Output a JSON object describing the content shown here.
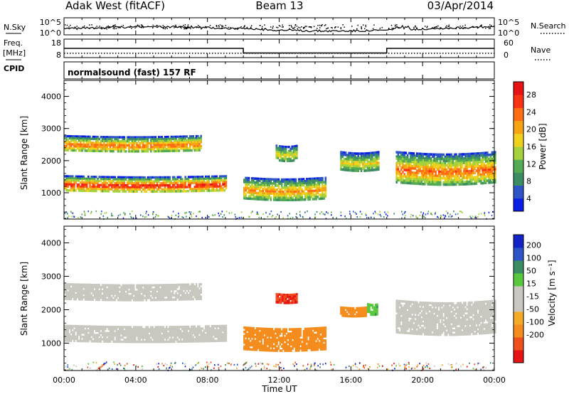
{
  "header": {
    "station": "Adak West (fitACF)",
    "beam": "Beam 13",
    "date": "03/Apr/2014",
    "cpid": "normalsound (fast) 157 RF"
  },
  "strips": {
    "nsky_label": "N.Sky",
    "nsearch_label": "N.Search",
    "noise_ticks": [
      "10^5",
      "10^0"
    ],
    "freq_label_1": "Freq.",
    "freq_label_2": "[MHz]",
    "freq_ticks": [
      "18",
      "8"
    ],
    "nave_label": "Nave",
    "nave_ticks": [
      "60",
      "0"
    ],
    "cpid_label": "CPID"
  },
  "colors": {
    "power": [
      "#0a1ee6",
      "#2d55c8",
      "#3c8c64",
      "#55aa55",
      "#a5d23c",
      "#f0d21e",
      "#f5a514",
      "#ff6e14",
      "#fa3214",
      "#e61414"
    ],
    "velocity": [
      "#e61414",
      "#f0501e",
      "#f58c1e",
      "#f5aa28",
      "#c8c8c0",
      "#c8c8c0",
      "#5ac83c",
      "#3c8c64",
      "#2d55c8",
      "#1423c8"
    ],
    "ground_scatter": "#c8c8c0"
  },
  "chart_data": [
    {
      "type": "heatmap",
      "name": "power",
      "xlabel": "",
      "ylabel": "Slant Range [km]",
      "xlim": [
        0,
        24
      ],
      "ylim": [
        180,
        4500
      ],
      "yticks": [
        "1000",
        "2000",
        "3000",
        "4000"
      ],
      "colorbar": {
        "label": "Power [dB]",
        "ticks": [
          "4",
          "8",
          "12",
          "16",
          "20",
          "24",
          "28"
        ]
      },
      "echo_regions": [
        {
          "t_start": 0.0,
          "t_end": 9.0,
          "range_start": 1050,
          "range_end": 1550,
          "peak_db": 28
        },
        {
          "t_start": 0.0,
          "t_end": 7.6,
          "range_start": 2300,
          "range_end": 2800,
          "peak_db": 24
        },
        {
          "t_start": 10.0,
          "t_end": 14.6,
          "range_start": 800,
          "range_end": 1500,
          "peak_db": 22
        },
        {
          "t_start": 11.8,
          "t_end": 13.0,
          "range_start": 2000,
          "range_end": 2500,
          "peak_db": 18
        },
        {
          "t_start": 15.4,
          "t_end": 17.5,
          "range_start": 1700,
          "range_end": 2300,
          "peak_db": 18
        },
        {
          "t_start": 18.5,
          "t_end": 24.0,
          "range_start": 1300,
          "range_end": 2300,
          "peak_db": 24
        }
      ]
    },
    {
      "type": "heatmap",
      "name": "velocity",
      "xlabel": "Time UT",
      "ylabel": "Slant Range [km]",
      "xlim": [
        0,
        24
      ],
      "xticks": [
        "00:00",
        "04:00",
        "08:00",
        "12:00",
        "16:00",
        "20:00",
        "00:00"
      ],
      "ylim": [
        180,
        4500
      ],
      "yticks": [
        "1000",
        "2000",
        "3000",
        "4000"
      ],
      "colorbar": {
        "label": "Velocity [m s⁻¹]",
        "ticks": [
          "200",
          "100",
          "50",
          "15",
          "-15",
          "-50",
          "-100",
          "-200"
        ]
      },
      "echo_regions": [
        {
          "t_start": 0.0,
          "t_end": 9.0,
          "range_start": 1050,
          "range_end": 1550,
          "velocity": 0,
          "ground_scatter": true
        },
        {
          "t_start": 0.0,
          "t_end": 7.6,
          "range_start": 2300,
          "range_end": 2800,
          "velocity": 0,
          "ground_scatter": true
        },
        {
          "t_start": 10.0,
          "t_end": 14.6,
          "range_start": 800,
          "range_end": 1500,
          "velocity": -70
        },
        {
          "t_start": 11.8,
          "t_end": 13.0,
          "range_start": 2200,
          "range_end": 2500,
          "velocity": -200
        },
        {
          "t_start": 15.4,
          "t_end": 16.9,
          "range_start": 1800,
          "range_end": 2100,
          "velocity": -80
        },
        {
          "t_start": 16.9,
          "t_end": 17.5,
          "range_start": 1850,
          "range_end": 2200,
          "velocity": 40
        },
        {
          "t_start": 18.5,
          "t_end": 24.0,
          "range_start": 1300,
          "range_end": 2300,
          "velocity": 0,
          "ground_scatter": true
        }
      ]
    },
    {
      "type": "line",
      "name": "operating-frequency",
      "ylim": [
        8,
        18
      ],
      "segments": [
        {
          "t_start": 0.0,
          "t_end": 10.0,
          "value": 13.0
        },
        {
          "t_start": 10.0,
          "t_end": 18.0,
          "value": 10.5
        },
        {
          "t_start": 18.0,
          "t_end": 24.0,
          "value": 13.0
        }
      ]
    },
    {
      "type": "line",
      "name": "nave",
      "ylim": [
        0,
        60
      ],
      "segments": [
        {
          "t_start": 0.0,
          "t_end": 24.0,
          "value": 14
        }
      ]
    }
  ]
}
